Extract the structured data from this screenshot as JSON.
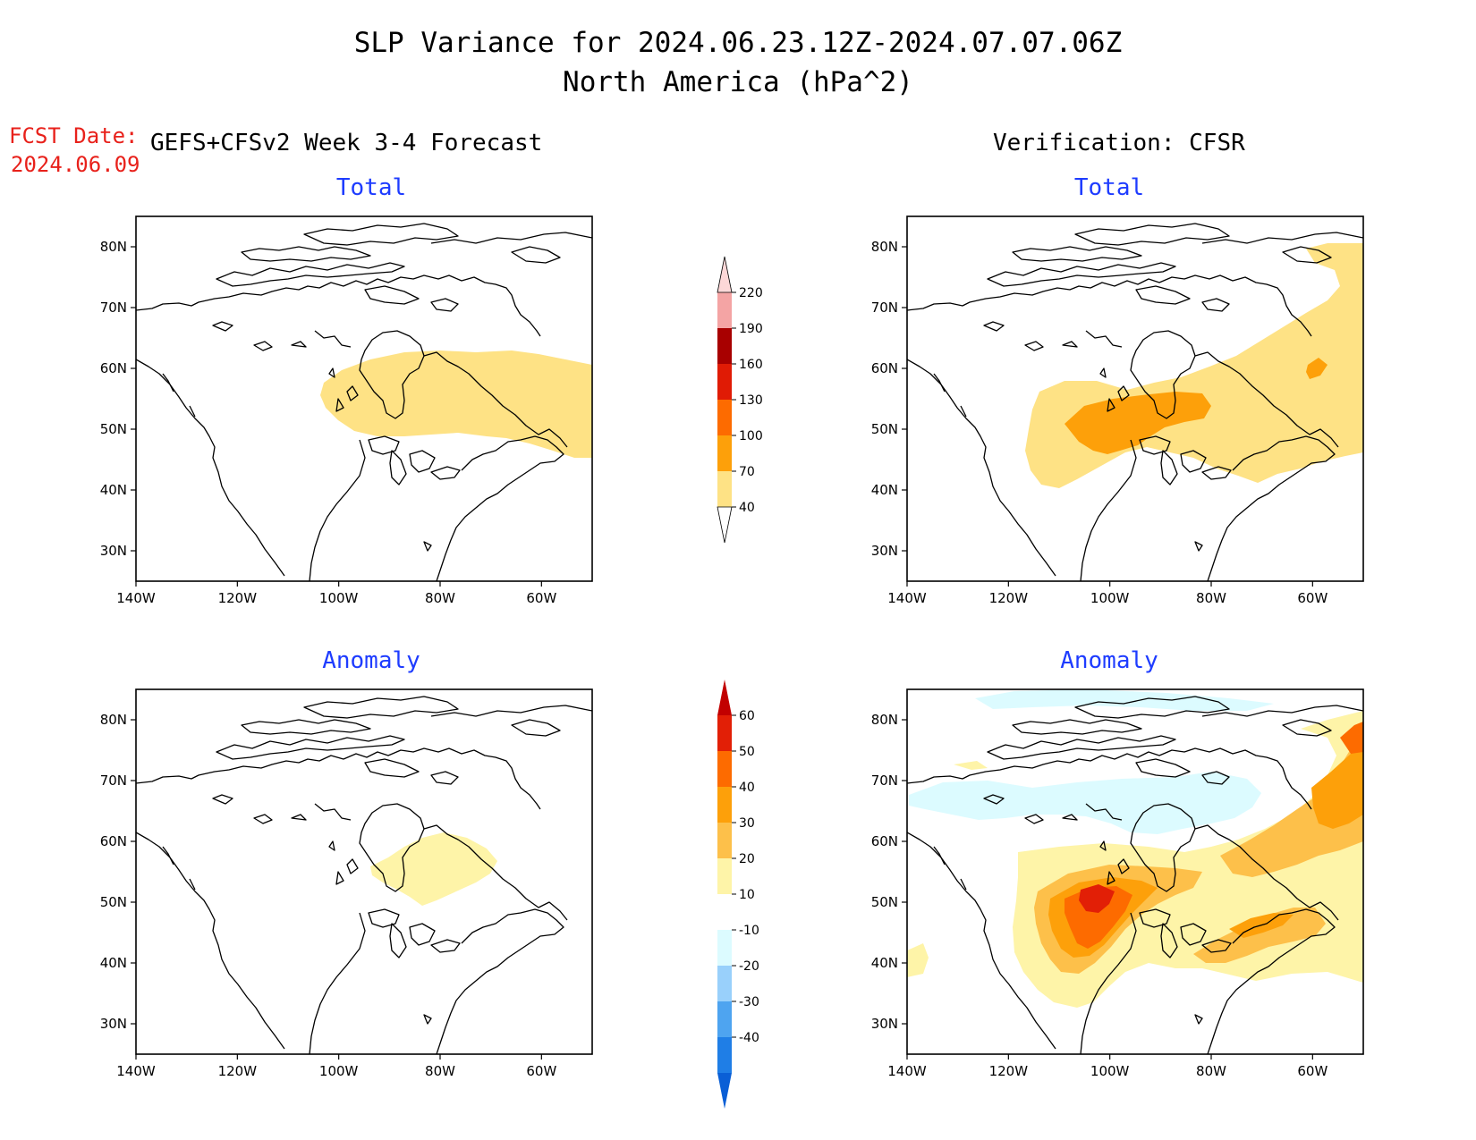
{
  "header": {
    "title_line1": "SLP Variance for 2024.06.23.12Z-2024.07.07.06Z",
    "title_line2": "North America (hPa^2)",
    "fcst_label": "FCST Date:",
    "fcst_date": "2024.06.09",
    "left_column": "GEFS+CFSv2 Week 3-4 Forecast",
    "right_column": "Verification: CFSR"
  },
  "panels": {
    "fcst_total_title": "Total",
    "verif_total_title": "Total",
    "fcst_anom_title": "Anomaly",
    "verif_anom_title": "Anomaly"
  },
  "axes": {
    "lon_labels": [
      "140W",
      "120W",
      "100W",
      "80W",
      "60W"
    ],
    "lat_labels": [
      "80N",
      "70N",
      "60N",
      "50N",
      "40N",
      "30N"
    ],
    "lon_range": [
      -140,
      -50
    ],
    "lat_range": [
      25,
      85
    ]
  },
  "colorbar_total": {
    "levels": [
      "40",
      "70",
      "100",
      "130",
      "160",
      "190",
      "220"
    ],
    "colors": [
      "#fee285",
      "#fda00a",
      "#fd6b00",
      "#e01b05",
      "#a80000",
      "#f4a4a4",
      "#fdd8d8"
    ]
  },
  "colorbar_anomaly": {
    "levels": [
      "60",
      "50",
      "40",
      "30",
      "20",
      "10",
      "-10",
      "-20",
      "-30",
      "-40"
    ],
    "colors": [
      "#c20000",
      "#e21f06",
      "#fd6b00",
      "#fda00a",
      "#fdc04a",
      "#fef4a8",
      "#ffffff",
      "#dcfbff",
      "#99d0fb",
      "#4ea4f0",
      "#1f7ee6",
      "#0a5fd6"
    ]
  },
  "fill_colors": {
    "c40": "#fee285",
    "c70": "#fda00a",
    "a10": "#fef4a8",
    "a20": "#fdc04a",
    "a30": "#fda00a",
    "a40": "#fd6b00",
    "a50": "#e21f06",
    "an10": "#dcfbff"
  }
}
